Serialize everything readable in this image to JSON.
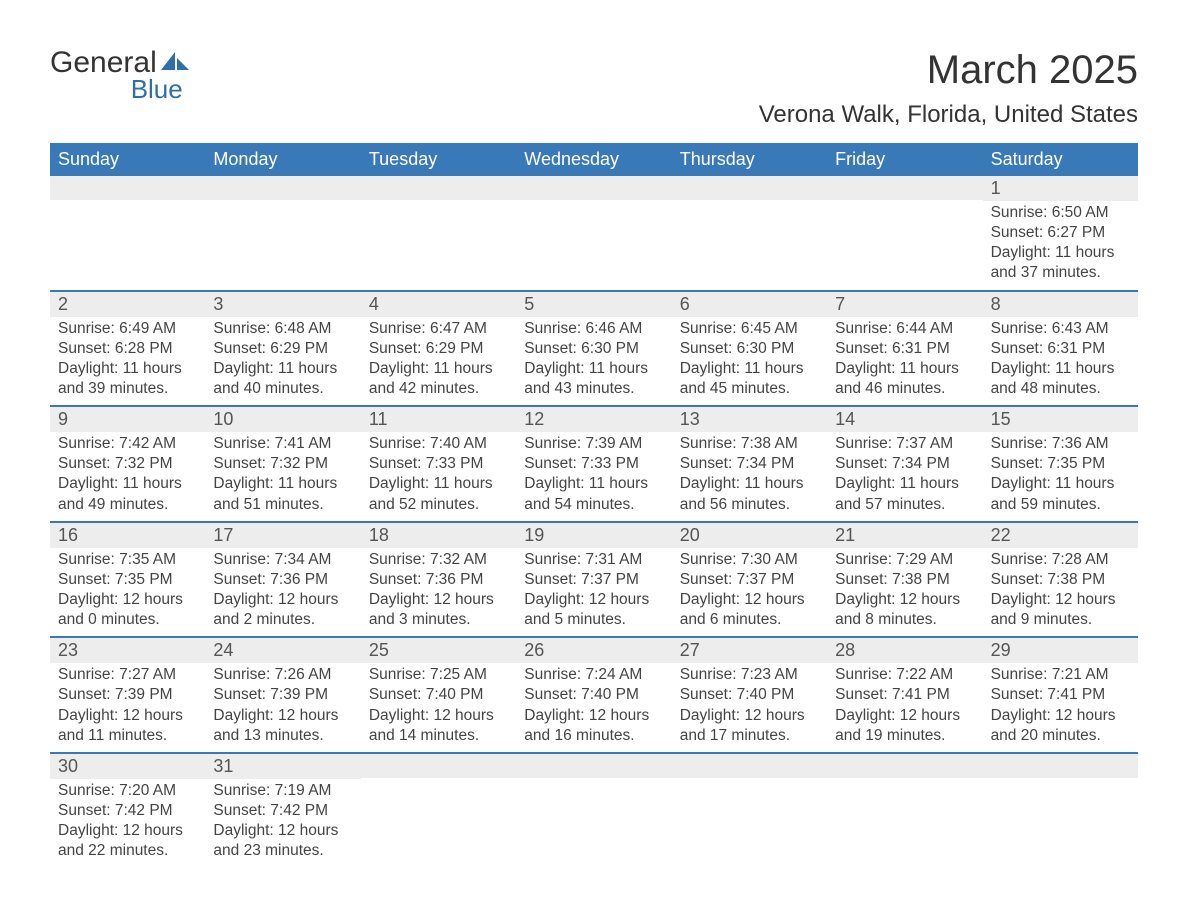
{
  "logo": {
    "text1": "General",
    "text2": "Blue",
    "icon_color": "#2f6fa9",
    "text1_color": "#333333",
    "text2_color": "#2f6fa9"
  },
  "title": "March 2025",
  "location": "Verona Walk, Florida, United States",
  "colors": {
    "header_bg": "#3a79b7",
    "header_text": "#ffffff",
    "daynum_bg": "#ededed",
    "week_border": "#3a79b7",
    "body_text": "#444444"
  },
  "weekdays": [
    "Sunday",
    "Monday",
    "Tuesday",
    "Wednesday",
    "Thursday",
    "Friday",
    "Saturday"
  ],
  "weeks": [
    [
      null,
      null,
      null,
      null,
      null,
      null,
      {
        "n": "1",
        "sunrise": "6:50 AM",
        "sunset": "6:27 PM",
        "dl1": "Daylight: 11 hours",
        "dl2": "and 37 minutes."
      }
    ],
    [
      {
        "n": "2",
        "sunrise": "6:49 AM",
        "sunset": "6:28 PM",
        "dl1": "Daylight: 11 hours",
        "dl2": "and 39 minutes."
      },
      {
        "n": "3",
        "sunrise": "6:48 AM",
        "sunset": "6:29 PM",
        "dl1": "Daylight: 11 hours",
        "dl2": "and 40 minutes."
      },
      {
        "n": "4",
        "sunrise": "6:47 AM",
        "sunset": "6:29 PM",
        "dl1": "Daylight: 11 hours",
        "dl2": "and 42 minutes."
      },
      {
        "n": "5",
        "sunrise": "6:46 AM",
        "sunset": "6:30 PM",
        "dl1": "Daylight: 11 hours",
        "dl2": "and 43 minutes."
      },
      {
        "n": "6",
        "sunrise": "6:45 AM",
        "sunset": "6:30 PM",
        "dl1": "Daylight: 11 hours",
        "dl2": "and 45 minutes."
      },
      {
        "n": "7",
        "sunrise": "6:44 AM",
        "sunset": "6:31 PM",
        "dl1": "Daylight: 11 hours",
        "dl2": "and 46 minutes."
      },
      {
        "n": "8",
        "sunrise": "6:43 AM",
        "sunset": "6:31 PM",
        "dl1": "Daylight: 11 hours",
        "dl2": "and 48 minutes."
      }
    ],
    [
      {
        "n": "9",
        "sunrise": "7:42 AM",
        "sunset": "7:32 PM",
        "dl1": "Daylight: 11 hours",
        "dl2": "and 49 minutes."
      },
      {
        "n": "10",
        "sunrise": "7:41 AM",
        "sunset": "7:32 PM",
        "dl1": "Daylight: 11 hours",
        "dl2": "and 51 minutes."
      },
      {
        "n": "11",
        "sunrise": "7:40 AM",
        "sunset": "7:33 PM",
        "dl1": "Daylight: 11 hours",
        "dl2": "and 52 minutes."
      },
      {
        "n": "12",
        "sunrise": "7:39 AM",
        "sunset": "7:33 PM",
        "dl1": "Daylight: 11 hours",
        "dl2": "and 54 minutes."
      },
      {
        "n": "13",
        "sunrise": "7:38 AM",
        "sunset": "7:34 PM",
        "dl1": "Daylight: 11 hours",
        "dl2": "and 56 minutes."
      },
      {
        "n": "14",
        "sunrise": "7:37 AM",
        "sunset": "7:34 PM",
        "dl1": "Daylight: 11 hours",
        "dl2": "and 57 minutes."
      },
      {
        "n": "15",
        "sunrise": "7:36 AM",
        "sunset": "7:35 PM",
        "dl1": "Daylight: 11 hours",
        "dl2": "and 59 minutes."
      }
    ],
    [
      {
        "n": "16",
        "sunrise": "7:35 AM",
        "sunset": "7:35 PM",
        "dl1": "Daylight: 12 hours",
        "dl2": "and 0 minutes."
      },
      {
        "n": "17",
        "sunrise": "7:34 AM",
        "sunset": "7:36 PM",
        "dl1": "Daylight: 12 hours",
        "dl2": "and 2 minutes."
      },
      {
        "n": "18",
        "sunrise": "7:32 AM",
        "sunset": "7:36 PM",
        "dl1": "Daylight: 12 hours",
        "dl2": "and 3 minutes."
      },
      {
        "n": "19",
        "sunrise": "7:31 AM",
        "sunset": "7:37 PM",
        "dl1": "Daylight: 12 hours",
        "dl2": "and 5 minutes."
      },
      {
        "n": "20",
        "sunrise": "7:30 AM",
        "sunset": "7:37 PM",
        "dl1": "Daylight: 12 hours",
        "dl2": "and 6 minutes."
      },
      {
        "n": "21",
        "sunrise": "7:29 AM",
        "sunset": "7:38 PM",
        "dl1": "Daylight: 12 hours",
        "dl2": "and 8 minutes."
      },
      {
        "n": "22",
        "sunrise": "7:28 AM",
        "sunset": "7:38 PM",
        "dl1": "Daylight: 12 hours",
        "dl2": "and 9 minutes."
      }
    ],
    [
      {
        "n": "23",
        "sunrise": "7:27 AM",
        "sunset": "7:39 PM",
        "dl1": "Daylight: 12 hours",
        "dl2": "and 11 minutes."
      },
      {
        "n": "24",
        "sunrise": "7:26 AM",
        "sunset": "7:39 PM",
        "dl1": "Daylight: 12 hours",
        "dl2": "and 13 minutes."
      },
      {
        "n": "25",
        "sunrise": "7:25 AM",
        "sunset": "7:40 PM",
        "dl1": "Daylight: 12 hours",
        "dl2": "and 14 minutes."
      },
      {
        "n": "26",
        "sunrise": "7:24 AM",
        "sunset": "7:40 PM",
        "dl1": "Daylight: 12 hours",
        "dl2": "and 16 minutes."
      },
      {
        "n": "27",
        "sunrise": "7:23 AM",
        "sunset": "7:40 PM",
        "dl1": "Daylight: 12 hours",
        "dl2": "and 17 minutes."
      },
      {
        "n": "28",
        "sunrise": "7:22 AM",
        "sunset": "7:41 PM",
        "dl1": "Daylight: 12 hours",
        "dl2": "and 19 minutes."
      },
      {
        "n": "29",
        "sunrise": "7:21 AM",
        "sunset": "7:41 PM",
        "dl1": "Daylight: 12 hours",
        "dl2": "and 20 minutes."
      }
    ],
    [
      {
        "n": "30",
        "sunrise": "7:20 AM",
        "sunset": "7:42 PM",
        "dl1": "Daylight: 12 hours",
        "dl2": "and 22 minutes."
      },
      {
        "n": "31",
        "sunrise": "7:19 AM",
        "sunset": "7:42 PM",
        "dl1": "Daylight: 12 hours",
        "dl2": "and 23 minutes."
      },
      null,
      null,
      null,
      null,
      null
    ]
  ]
}
